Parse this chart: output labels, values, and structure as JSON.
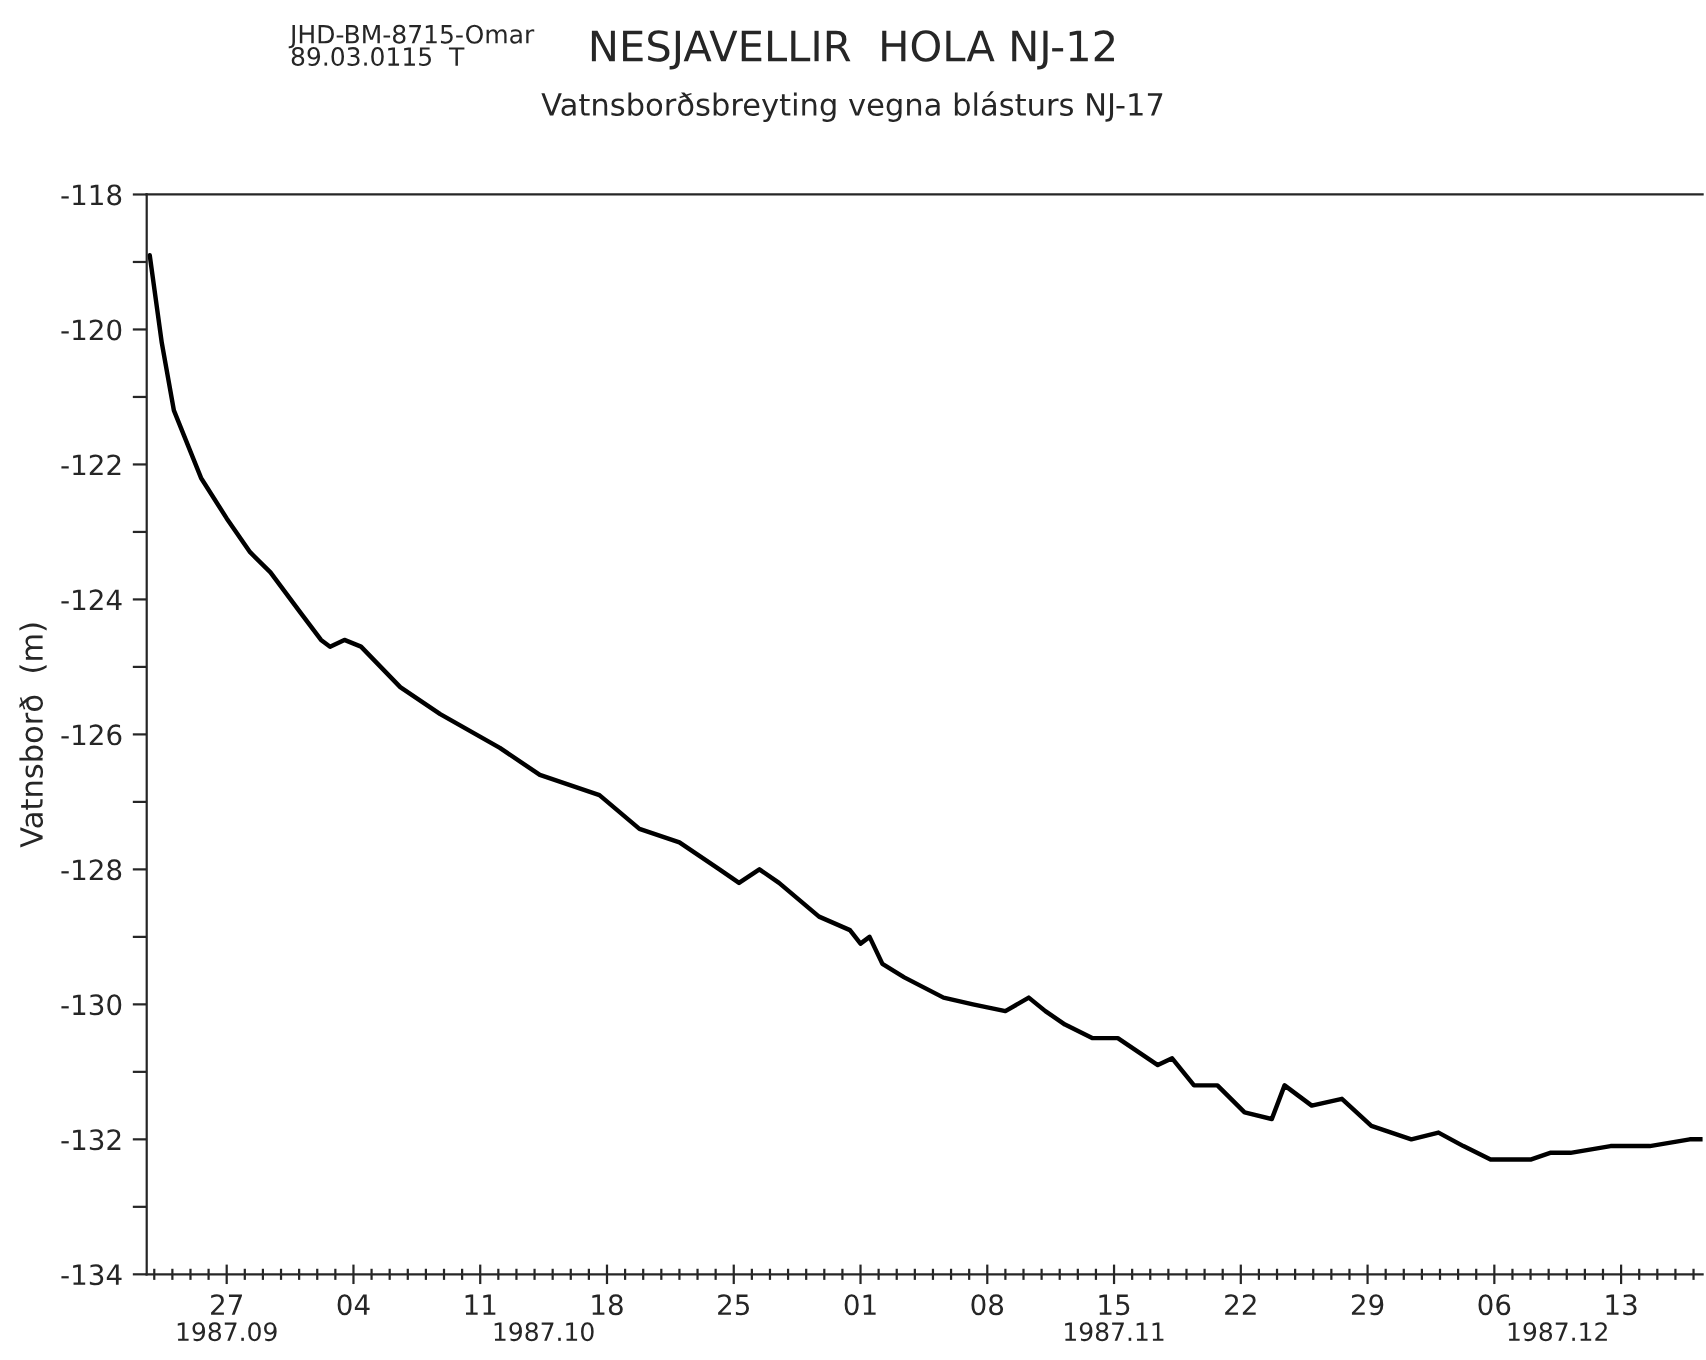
{
  "chart_data": {
    "type": "line",
    "title": "NESJAVELLIR  HOLA NJ-12",
    "subtitle": "Vatnsborðsbreyting vegna blásturs NJ-17",
    "ylabel": "Vatnsborð  (m)",
    "annotations": [
      "JHD-BM-8715-Omar\n89.03.0115  T"
    ],
    "series": [
      {
        "color": "#000000",
        "x": [
          "1987-09-22T18:00",
          "1987-09-23T10:00",
          "1987-09-24T02:00",
          "1987-09-25T14:00",
          "1987-09-27",
          "1987-09-28T07:00",
          "1987-09-29T10:00",
          "1987-10-01T02:00",
          "1987-10-02T05:00",
          "1987-10-02T17:00",
          "1987-10-03T12:00",
          "1987-10-04T10:00",
          "1987-10-06T14:00",
          "1987-10-08T19:00",
          "1987-10-12T02:00",
          "1987-10-14T07:00",
          "1987-10-17T14:00",
          "1987-10-19T19:00",
          "1987-10-22",
          "1987-10-24T05:00",
          "1987-10-25T07:00",
          "1987-10-26T10:00",
          "1987-10-27T12:00",
          "1987-10-29T17:00",
          "1987-10-31T10:00",
          "1987-11-01",
          "1987-11-01T12:00",
          "1987-11-02T05:00",
          "1987-11-03T10:00",
          "1987-11-05T14:00",
          "1987-11-07T05:00",
          "1987-11-09",
          "1987-11-10T07:00",
          "1987-11-11T05:00",
          "1987-11-12T07:00",
          "1987-11-13T19:00",
          "1987-11-15T05:00",
          "1987-11-17T10:00",
          "1987-11-18T05:00",
          "1987-11-19T10:00",
          "1987-11-20T17:00",
          "1987-11-22T05:00",
          "1987-11-23T17:00",
          "1987-11-24T10:00",
          "1987-11-25T22:00",
          "1987-11-27T14:00",
          "1987-11-29T05:00",
          "1987-12-01T10:00",
          "1987-12-02T22:00",
          "1987-12-04T07:00",
          "1987-12-05T19:00",
          "1987-12-08",
          "1987-12-09T02:00",
          "1987-12-10T05:00",
          "1987-12-12T10:00",
          "1987-12-14T14:00",
          "1987-12-16T19:00",
          "1987-12-17T12:00"
        ],
        "values": [
          -118.9,
          -120.2,
          -121.2,
          -122.2,
          -122.8,
          -123.3,
          -123.6,
          -124.2,
          -124.6,
          -124.7,
          -124.6,
          -124.7,
          -125.3,
          -125.7,
          -126.2,
          -126.6,
          -126.9,
          -127.4,
          -127.6,
          -128.0,
          -128.2,
          -128.0,
          -128.2,
          -128.7,
          -128.9,
          -129.1,
          -129.0,
          -129.4,
          -129.6,
          -129.9,
          -130.0,
          -130.1,
          -129.9,
          -130.1,
          -130.3,
          -130.5,
          -130.5,
          -130.9,
          -130.8,
          -131.2,
          -131.2,
          -131.6,
          -131.7,
          -131.2,
          -131.5,
          -131.4,
          -131.8,
          -132.0,
          -131.9,
          -132.1,
          -132.3,
          -132.3,
          -132.2,
          -132.2,
          -132.1,
          -132.1,
          -132.0,
          -132.0
        ]
      }
    ],
    "xlim": [
      "1987-09-22T14:00",
      "1987-12-17T12:00"
    ],
    "xticks": [
      {
        "value": "1987-09-23",
        "label": null
      },
      {
        "value": "1987-09-24",
        "label": null
      },
      {
        "value": "1987-09-25",
        "label": null
      },
      {
        "value": "1987-09-26",
        "label": null
      },
      {
        "value": "1987-09-27",
        "label": "27"
      },
      {
        "value": "1987-09-28",
        "label": null
      },
      {
        "value": "1987-09-29",
        "label": null
      },
      {
        "value": "1987-09-30",
        "label": null
      },
      {
        "value": "1987-10-01",
        "label": null
      },
      {
        "value": "1987-10-02",
        "label": null
      },
      {
        "value": "1987-10-03",
        "label": null
      },
      {
        "value": "1987-10-04",
        "label": "04"
      },
      {
        "value": "1987-10-05",
        "label": null
      },
      {
        "value": "1987-10-06",
        "label": null
      },
      {
        "value": "1987-10-07",
        "label": null
      },
      {
        "value": "1987-10-08",
        "label": null
      },
      {
        "value": "1987-10-09",
        "label": null
      },
      {
        "value": "1987-10-10",
        "label": null
      },
      {
        "value": "1987-10-11",
        "label": "11"
      },
      {
        "value": "1987-10-12",
        "label": null
      },
      {
        "value": "1987-10-13",
        "label": null
      },
      {
        "value": "1987-10-14",
        "label": null
      },
      {
        "value": "1987-10-15",
        "label": null
      },
      {
        "value": "1987-10-16",
        "label": null
      },
      {
        "value": "1987-10-17",
        "label": null
      },
      {
        "value": "1987-10-18",
        "label": "18"
      },
      {
        "value": "1987-10-19",
        "label": null
      },
      {
        "value": "1987-10-20",
        "label": null
      },
      {
        "value": "1987-10-21",
        "label": null
      },
      {
        "value": "1987-10-22",
        "label": null
      },
      {
        "value": "1987-10-23",
        "label": null
      },
      {
        "value": "1987-10-24",
        "label": null
      },
      {
        "value": "1987-10-25",
        "label": "25"
      },
      {
        "value": "1987-10-26",
        "label": null
      },
      {
        "value": "1987-10-27",
        "label": null
      },
      {
        "value": "1987-10-28",
        "label": null
      },
      {
        "value": "1987-10-29",
        "label": null
      },
      {
        "value": "1987-10-30",
        "label": null
      },
      {
        "value": "1987-10-31",
        "label": null
      },
      {
        "value": "1987-11-01",
        "label": "01"
      },
      {
        "value": "1987-11-02",
        "label": null
      },
      {
        "value": "1987-11-03",
        "label": null
      },
      {
        "value": "1987-11-04",
        "label": null
      },
      {
        "value": "1987-11-05",
        "label": null
      },
      {
        "value": "1987-11-06",
        "label": null
      },
      {
        "value": "1987-11-07",
        "label": null
      },
      {
        "value": "1987-11-08",
        "label": "08"
      },
      {
        "value": "1987-11-09",
        "label": null
      },
      {
        "value": "1987-11-10",
        "label": null
      },
      {
        "value": "1987-11-11",
        "label": null
      },
      {
        "value": "1987-11-12",
        "label": null
      },
      {
        "value": "1987-11-13",
        "label": null
      },
      {
        "value": "1987-11-14",
        "label": null
      },
      {
        "value": "1987-11-15",
        "label": "15"
      },
      {
        "value": "1987-11-16",
        "label": null
      },
      {
        "value": "1987-11-17",
        "label": null
      },
      {
        "value": "1987-11-18",
        "label": null
      },
      {
        "value": "1987-11-19",
        "label": null
      },
      {
        "value": "1987-11-20",
        "label": null
      },
      {
        "value": "1987-11-21",
        "label": null
      },
      {
        "value": "1987-11-22",
        "label": "22"
      },
      {
        "value": "1987-11-23",
        "label": null
      },
      {
        "value": "1987-11-24",
        "label": null
      },
      {
        "value": "1987-11-25",
        "label": null
      },
      {
        "value": "1987-11-26",
        "label": null
      },
      {
        "value": "1987-11-27",
        "label": null
      },
      {
        "value": "1987-11-28",
        "label": null
      },
      {
        "value": "1987-11-29",
        "label": "29"
      },
      {
        "value": "1987-11-30",
        "label": null
      },
      {
        "value": "1987-12-01",
        "label": null
      },
      {
        "value": "1987-12-02",
        "label": null
      },
      {
        "value": "1987-12-03",
        "label": null
      },
      {
        "value": "1987-12-04",
        "label": null
      },
      {
        "value": "1987-12-05",
        "label": null
      },
      {
        "value": "1987-12-06",
        "label": "06"
      },
      {
        "value": "1987-12-07",
        "label": null
      },
      {
        "value": "1987-12-08",
        "label": null
      },
      {
        "value": "1987-12-09",
        "label": null
      },
      {
        "value": "1987-12-10",
        "label": null
      },
      {
        "value": "1987-12-11",
        "label": null
      },
      {
        "value": "1987-12-12",
        "label": null
      },
      {
        "value": "1987-12-13",
        "label": "13"
      },
      {
        "value": "1987-12-14",
        "label": null
      },
      {
        "value": "1987-12-15",
        "label": null
      },
      {
        "value": "1987-12-16",
        "label": null
      },
      {
        "value": "1987-12-17",
        "label": null
      }
    ],
    "x2lim": [
      "1987-09-22T14:00",
      "1987-12-17T12:00"
    ],
    "x2ticks": [
      {
        "value": "1987-09-27",
        "label": "1987.09"
      },
      {
        "value": "1987-10-14T12:00",
        "label": "1987.10"
      },
      {
        "value": "1987-11-15",
        "label": "1987.11"
      },
      {
        "value": "1987-12-09T12:00",
        "label": "1987.12"
      }
    ],
    "ylim": [
      -134,
      -118
    ],
    "yticks": [
      -134,
      {
        "value": -133,
        "label": null
      },
      -132,
      {
        "value": -131,
        "label": null
      },
      -130,
      {
        "value": -129,
        "label": null
      },
      -128,
      {
        "value": -127,
        "label": null
      },
      -126,
      {
        "value": -125,
        "label": null
      },
      -124,
      {
        "value": -123,
        "label": null
      },
      -122,
      {
        "value": -121,
        "label": null
      },
      -120,
      {
        "value": -119,
        "label": null
      },
      -118
    ],
    "grid": false,
    "legend": false,
    "marker": "none",
    "line_style": "solid"
  }
}
